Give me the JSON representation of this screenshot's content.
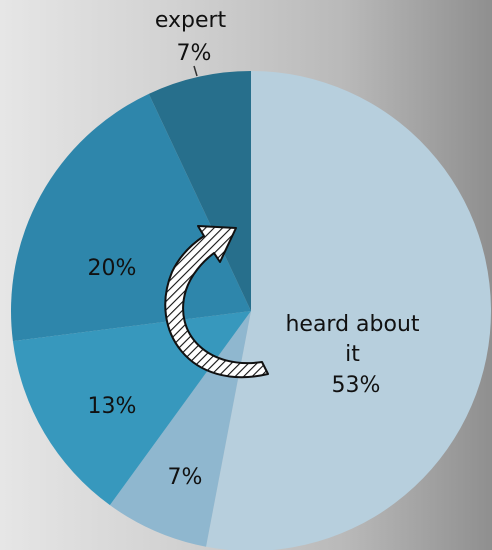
{
  "chart_data": {
    "type": "pie",
    "title": "",
    "slices": [
      {
        "label": "heard about it",
        "value": 53,
        "color": "#b7cfdd"
      },
      {
        "label": "",
        "value": 7,
        "color": "#8fb7cf"
      },
      {
        "label": "",
        "value": 13,
        "color": "#3798bd"
      },
      {
        "label": "",
        "value": 20,
        "color": "#2e86ab"
      },
      {
        "label": "expert",
        "value": 7,
        "color": "#276f8c"
      }
    ],
    "data_labels": [
      {
        "lines": [
          "heard about",
          "it",
          "53%"
        ]
      },
      {
        "lines": [
          "7%"
        ]
      },
      {
        "lines": [
          "13%"
        ]
      },
      {
        "lines": [
          "20%"
        ]
      },
      {
        "lines": [
          "expert",
          "7%"
        ]
      }
    ],
    "annotations": [
      {
        "name": "growth-arrow",
        "shape": "curved-arrow",
        "fill": "hatched",
        "direction": "counter-clockwise upward"
      }
    ],
    "legend": "none",
    "start_angle_deg": 0,
    "direction": "clockwise"
  }
}
